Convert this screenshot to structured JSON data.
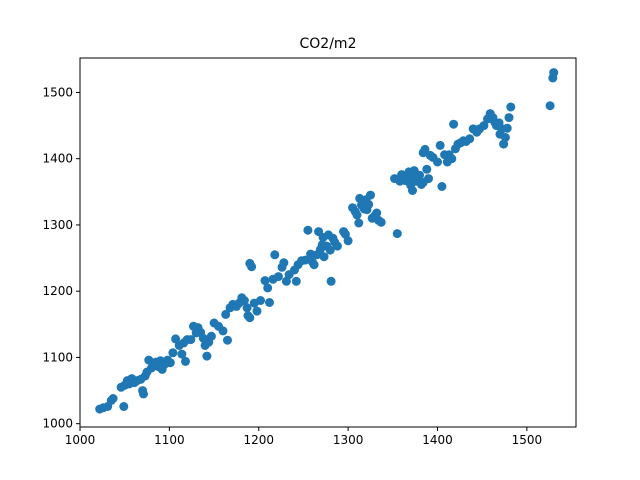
{
  "chart_data": {
    "type": "scatter",
    "title": "CO2/m2",
    "xlabel": "",
    "ylabel": "",
    "xlim": [
      1000,
      1555
    ],
    "ylim": [
      995,
      1552
    ],
    "xticks": [
      1000,
      1100,
      1200,
      1300,
      1400,
      1500
    ],
    "yticks": [
      1000,
      1100,
      1200,
      1300,
      1400,
      1500
    ],
    "grid": false,
    "color": "#1f77b4",
    "points": [
      [
        1022,
        1022
      ],
      [
        1026,
        1024
      ],
      [
        1031,
        1026
      ],
      [
        1035,
        1035
      ],
      [
        1037,
        1038
      ],
      [
        1049,
        1026
      ],
      [
        1046,
        1055
      ],
      [
        1050,
        1058
      ],
      [
        1053,
        1065
      ],
      [
        1055,
        1060
      ],
      [
        1058,
        1068
      ],
      [
        1061,
        1062
      ],
      [
        1064,
        1065
      ],
      [
        1068,
        1067
      ],
      [
        1070,
        1050
      ],
      [
        1071,
        1045
      ],
      [
        1073,
        1072
      ],
      [
        1075,
        1078
      ],
      [
        1077,
        1096
      ],
      [
        1080,
        1084
      ],
      [
        1083,
        1090
      ],
      [
        1085,
        1093
      ],
      [
        1088,
        1086
      ],
      [
        1090,
        1095
      ],
      [
        1092,
        1082
      ],
      [
        1095,
        1090
      ],
      [
        1098,
        1096
      ],
      [
        1101,
        1092
      ],
      [
        1104,
        1107
      ],
      [
        1107,
        1128
      ],
      [
        1111,
        1118
      ],
      [
        1114,
        1105
      ],
      [
        1116,
        1122
      ],
      [
        1118,
        1094
      ],
      [
        1120,
        1127
      ],
      [
        1124,
        1127
      ],
      [
        1127,
        1147
      ],
      [
        1130,
        1137
      ],
      [
        1132,
        1145
      ],
      [
        1135,
        1138
      ],
      [
        1138,
        1129
      ],
      [
        1140,
        1118
      ],
      [
        1142,
        1102
      ],
      [
        1144,
        1123
      ],
      [
        1147,
        1132
      ],
      [
        1150,
        1152
      ],
      [
        1155,
        1147
      ],
      [
        1160,
        1140
      ],
      [
        1163,
        1165
      ],
      [
        1165,
        1126
      ],
      [
        1168,
        1175
      ],
      [
        1171,
        1180
      ],
      [
        1175,
        1177
      ],
      [
        1178,
        1182
      ],
      [
        1181,
        1190
      ],
      [
        1184,
        1186
      ],
      [
        1187,
        1175
      ],
      [
        1188,
        1163
      ],
      [
        1190,
        1160
      ],
      [
        1190,
        1242
      ],
      [
        1192,
        1237
      ],
      [
        1195,
        1182
      ],
      [
        1198,
        1170
      ],
      [
        1202,
        1186
      ],
      [
        1207,
        1216
      ],
      [
        1210,
        1205
      ],
      [
        1212,
        1183
      ],
      [
        1216,
        1218
      ],
      [
        1218,
        1255
      ],
      [
        1222,
        1222
      ],
      [
        1226,
        1236
      ],
      [
        1228,
        1243
      ],
      [
        1231,
        1215
      ],
      [
        1234,
        1225
      ],
      [
        1240,
        1232
      ],
      [
        1242,
        1215
      ],
      [
        1244,
        1240
      ],
      [
        1248,
        1246
      ],
      [
        1252,
        1247
      ],
      [
        1255,
        1292
      ],
      [
        1258,
        1256
      ],
      [
        1260,
        1244
      ],
      [
        1262,
        1240
      ],
      [
        1265,
        1255
      ],
      [
        1267,
        1290
      ],
      [
        1269,
        1263
      ],
      [
        1271,
        1270
      ],
      [
        1272,
        1281
      ],
      [
        1273,
        1252
      ],
      [
        1276,
        1268
      ],
      [
        1278,
        1285
      ],
      [
        1280,
        1262
      ],
      [
        1281,
        1215
      ],
      [
        1283,
        1280
      ],
      [
        1285,
        1274
      ],
      [
        1288,
        1268
      ],
      [
        1295,
        1290
      ],
      [
        1297,
        1286
      ],
      [
        1300,
        1276
      ],
      [
        1305,
        1326
      ],
      [
        1308,
        1320
      ],
      [
        1310,
        1315
      ],
      [
        1312,
        1303
      ],
      [
        1313,
        1340
      ],
      [
        1315,
        1330
      ],
      [
        1317,
        1335
      ],
      [
        1318,
        1324
      ],
      [
        1320,
        1338
      ],
      [
        1321,
        1323
      ],
      [
        1323,
        1331
      ],
      [
        1325,
        1345
      ],
      [
        1327,
        1310
      ],
      [
        1330,
        1314
      ],
      [
        1332,
        1318
      ],
      [
        1334,
        1307
      ],
      [
        1337,
        1304
      ],
      [
        1352,
        1370
      ],
      [
        1355,
        1287
      ],
      [
        1358,
        1366
      ],
      [
        1360,
        1376
      ],
      [
        1362,
        1371
      ],
      [
        1364,
        1367
      ],
      [
        1366,
        1370
      ],
      [
        1367,
        1373
      ],
      [
        1368,
        1380
      ],
      [
        1369,
        1365
      ],
      [
        1370,
        1360
      ],
      [
        1371,
        1375
      ],
      [
        1372,
        1352
      ],
      [
        1374,
        1382
      ],
      [
        1376,
        1366
      ],
      [
        1378,
        1370
      ],
      [
        1380,
        1375
      ],
      [
        1382,
        1361
      ],
      [
        1384,
        1364
      ],
      [
        1384,
        1409
      ],
      [
        1386,
        1414
      ],
      [
        1388,
        1384
      ],
      [
        1390,
        1370
      ],
      [
        1392,
        1405
      ],
      [
        1395,
        1402
      ],
      [
        1400,
        1395
      ],
      [
        1403,
        1420
      ],
      [
        1405,
        1358
      ],
      [
        1408,
        1406
      ],
      [
        1411,
        1395
      ],
      [
        1413,
        1406
      ],
      [
        1416,
        1400
      ],
      [
        1418,
        1452
      ],
      [
        1420,
        1415
      ],
      [
        1423,
        1422
      ],
      [
        1426,
        1424
      ],
      [
        1429,
        1427
      ],
      [
        1432,
        1426
      ],
      [
        1436,
        1430
      ],
      [
        1440,
        1445
      ],
      [
        1444,
        1440
      ],
      [
        1447,
        1445
      ],
      [
        1452,
        1450
      ],
      [
        1456,
        1460
      ],
      [
        1459,
        1468
      ],
      [
        1462,
        1462
      ],
      [
        1464,
        1455
      ],
      [
        1466,
        1450
      ],
      [
        1469,
        1454
      ],
      [
        1470,
        1437
      ],
      [
        1472,
        1445
      ],
      [
        1474,
        1422
      ],
      [
        1476,
        1432
      ],
      [
        1478,
        1446
      ],
      [
        1480,
        1462
      ],
      [
        1482,
        1478
      ],
      [
        1526,
        1480
      ],
      [
        1529,
        1522
      ],
      [
        1530,
        1530
      ]
    ]
  }
}
